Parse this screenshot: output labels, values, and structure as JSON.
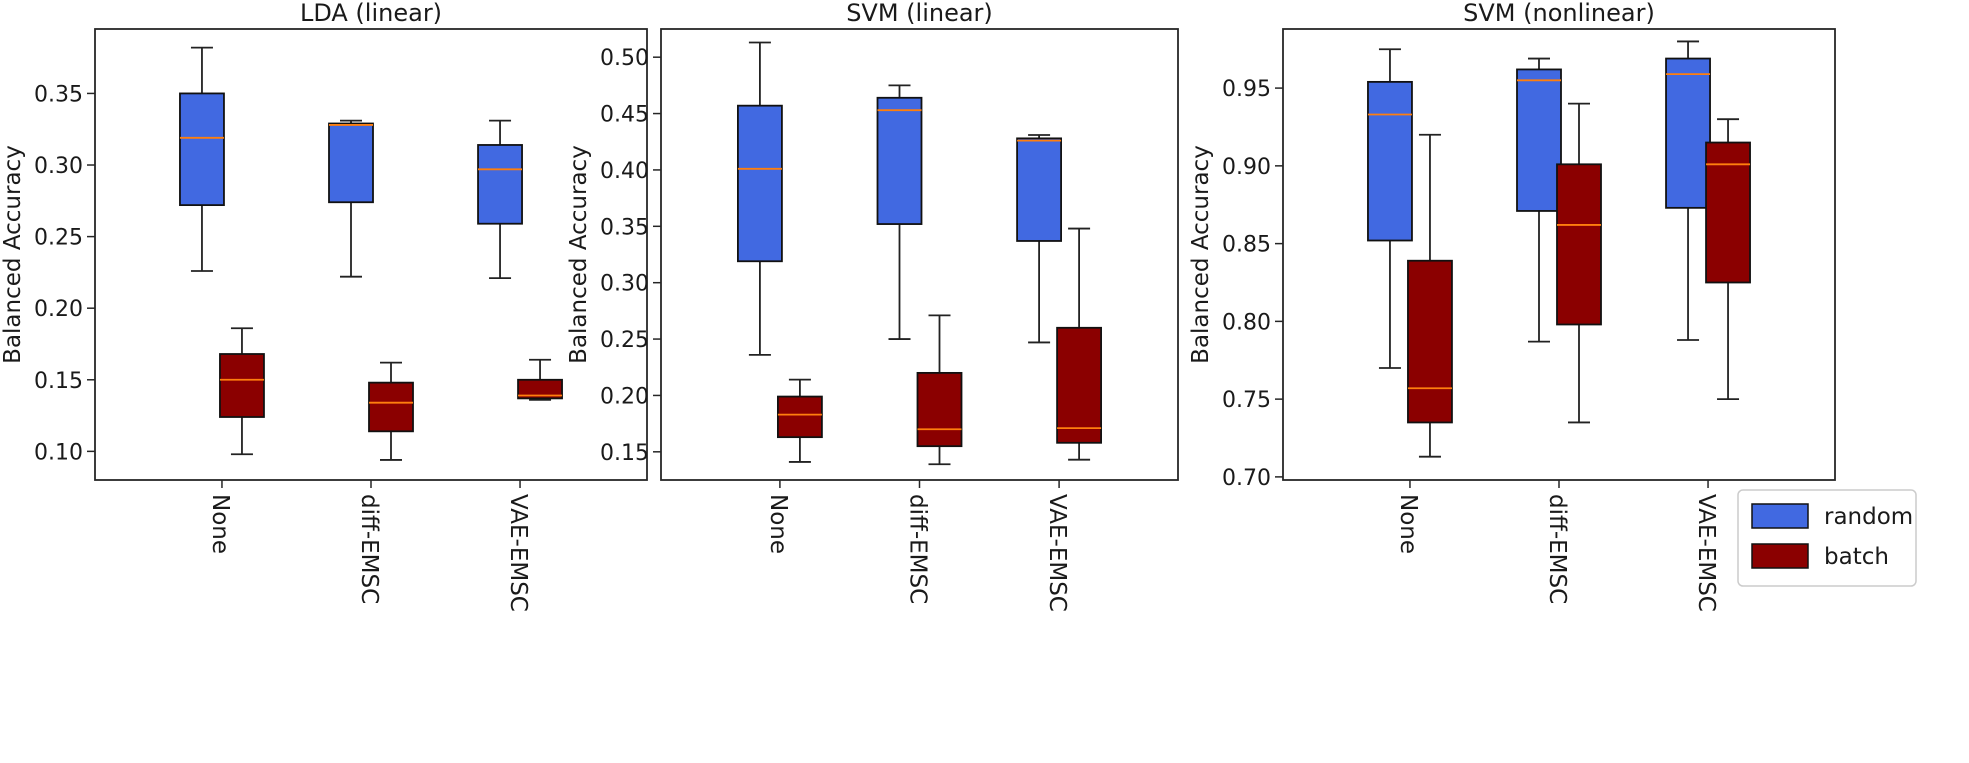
{
  "chart_data": [
    {
      "type": "box",
      "title": "LDA (linear)",
      "ylabel": "Balanced Accuracy",
      "ylim": [
        0.08,
        0.395
      ],
      "yticks": [
        0.1,
        0.15,
        0.2,
        0.25,
        0.3,
        0.35
      ],
      "yticklabels": [
        "0.10",
        "0.15",
        "0.20",
        "0.25",
        "0.30",
        "0.35"
      ],
      "categories": [
        "None",
        "diff-EMSC",
        "VAE-EMSC"
      ],
      "series": [
        {
          "name": "random",
          "color": "#4169e1",
          "boxes": [
            {
              "whislo": 0.226,
              "q1": 0.272,
              "med": 0.319,
              "q3": 0.35,
              "whishi": 0.382
            },
            {
              "whislo": 0.222,
              "q1": 0.274,
              "med": 0.328,
              "q3": 0.329,
              "whishi": 0.331
            },
            {
              "whislo": 0.221,
              "q1": 0.259,
              "med": 0.297,
              "q3": 0.314,
              "whishi": 0.331
            }
          ]
        },
        {
          "name": "batch",
          "color": "#8b0000",
          "boxes": [
            {
              "whislo": 0.098,
              "q1": 0.124,
              "med": 0.15,
              "q3": 0.168,
              "whishi": 0.186
            },
            {
              "whislo": 0.094,
              "q1": 0.114,
              "med": 0.134,
              "q3": 0.148,
              "whishi": 0.162
            },
            {
              "whislo": 0.136,
              "q1": 0.137,
              "med": 0.139,
              "q3": 0.15,
              "whishi": 0.164
            }
          ]
        }
      ],
      "legend": null
    },
    {
      "type": "box",
      "title": "SVM (linear)",
      "ylabel": "Balanced Accuracy",
      "ylim": [
        0.125,
        0.525
      ],
      "yticks": [
        0.15,
        0.2,
        0.25,
        0.3,
        0.35,
        0.4,
        0.45,
        0.5
      ],
      "yticklabels": [
        "0.15",
        "0.20",
        "0.25",
        "0.30",
        "0.35",
        "0.40",
        "0.45",
        "0.50"
      ],
      "categories": [
        "None",
        "diff-EMSC",
        "VAE-EMSC"
      ],
      "series": [
        {
          "name": "random",
          "color": "#4169e1",
          "boxes": [
            {
              "whislo": 0.236,
              "q1": 0.319,
              "med": 0.401,
              "q3": 0.457,
              "whishi": 0.513
            },
            {
              "whislo": 0.25,
              "q1": 0.352,
              "med": 0.453,
              "q3": 0.464,
              "whishi": 0.475
            },
            {
              "whislo": 0.247,
              "q1": 0.337,
              "med": 0.426,
              "q3": 0.428,
              "whishi": 0.431
            }
          ]
        },
        {
          "name": "batch",
          "color": "#8b0000",
          "boxes": [
            {
              "whislo": 0.141,
              "q1": 0.163,
              "med": 0.183,
              "q3": 0.199,
              "whishi": 0.214
            },
            {
              "whislo": 0.139,
              "q1": 0.155,
              "med": 0.17,
              "q3": 0.22,
              "whishi": 0.271
            },
            {
              "whislo": 0.143,
              "q1": 0.158,
              "med": 0.171,
              "q3": 0.26,
              "whishi": 0.348
            }
          ]
        }
      ],
      "legend": null
    },
    {
      "type": "box",
      "title": "SVM (nonlinear)",
      "ylabel": "Balanced Accuracy",
      "ylim": [
        0.698,
        0.988
      ],
      "yticks": [
        0.7,
        0.75,
        0.8,
        0.85,
        0.9,
        0.95
      ],
      "yticklabels": [
        "0.70",
        "0.75",
        "0.80",
        "0.85",
        "0.90",
        "0.95"
      ],
      "categories": [
        "None",
        "diff-EMSC",
        "VAE-EMSC"
      ],
      "series": [
        {
          "name": "random",
          "color": "#4169e1",
          "boxes": [
            {
              "whislo": 0.77,
              "q1": 0.852,
              "med": 0.933,
              "q3": 0.954,
              "whishi": 0.975
            },
            {
              "whislo": 0.787,
              "q1": 0.871,
              "med": 0.955,
              "q3": 0.962,
              "whishi": 0.969
            },
            {
              "whislo": 0.788,
              "q1": 0.873,
              "med": 0.959,
              "q3": 0.969,
              "whishi": 0.98
            }
          ]
        },
        {
          "name": "batch",
          "color": "#8b0000",
          "boxes": [
            {
              "whislo": 0.713,
              "q1": 0.735,
              "med": 0.757,
              "q3": 0.839,
              "whishi": 0.92
            },
            {
              "whislo": 0.735,
              "q1": 0.798,
              "med": 0.862,
              "q3": 0.901,
              "whishi": 0.94
            },
            {
              "whislo": 0.75,
              "q1": 0.825,
              "med": 0.901,
              "q3": 0.915,
              "whishi": 0.93
            }
          ]
        }
      ],
      "legend": {
        "position": "lower right",
        "entries": [
          "random",
          "batch"
        ]
      }
    }
  ],
  "colors": {
    "random_fill": "#4169e1",
    "batch_fill": "#8b0000",
    "median_line": "#ff7f0e",
    "axes_frame": "#262626"
  }
}
